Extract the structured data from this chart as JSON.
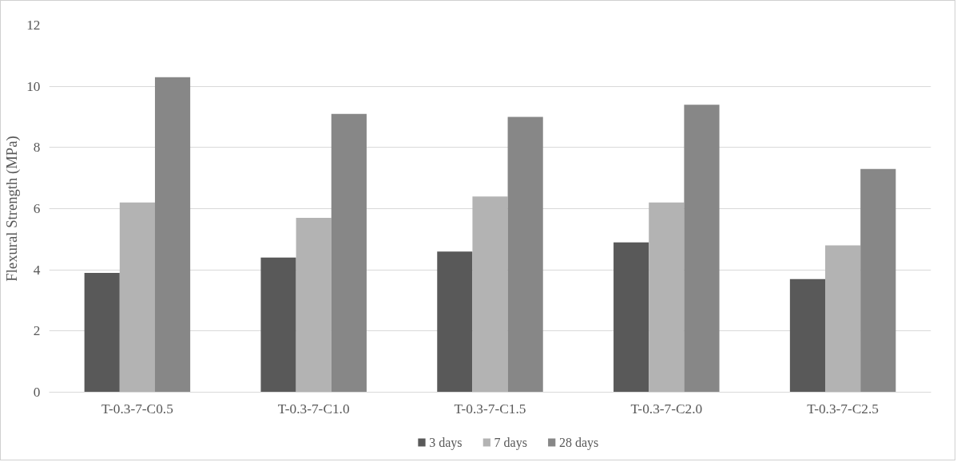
{
  "chart_data": {
    "type": "bar",
    "ylabel": "Flexural Strength (MPa)",
    "categories": [
      "T-0.3-7-C0.5",
      "T-0.3-7-C1.0",
      "T-0.3-7-C1.5",
      "T-0.3-7-C2.0",
      "T-0.3-7-C2.5"
    ],
    "series": [
      {
        "name": "3 days",
        "color": "#595959",
        "values": [
          3.9,
          4.4,
          4.6,
          4.9,
          3.7
        ]
      },
      {
        "name": "7 days",
        "color": "#b3b3b3",
        "values": [
          6.2,
          5.7,
          6.4,
          6.2,
          4.8
        ]
      },
      {
        "name": "28 days",
        "color": "#878787",
        "values": [
          10.3,
          9.1,
          9.0,
          9.4,
          7.3
        ]
      }
    ],
    "ylim": [
      0,
      12
    ],
    "yticks": [
      0,
      2,
      4,
      6,
      8,
      10,
      12
    ],
    "grid": "y",
    "legend": "bottom"
  }
}
